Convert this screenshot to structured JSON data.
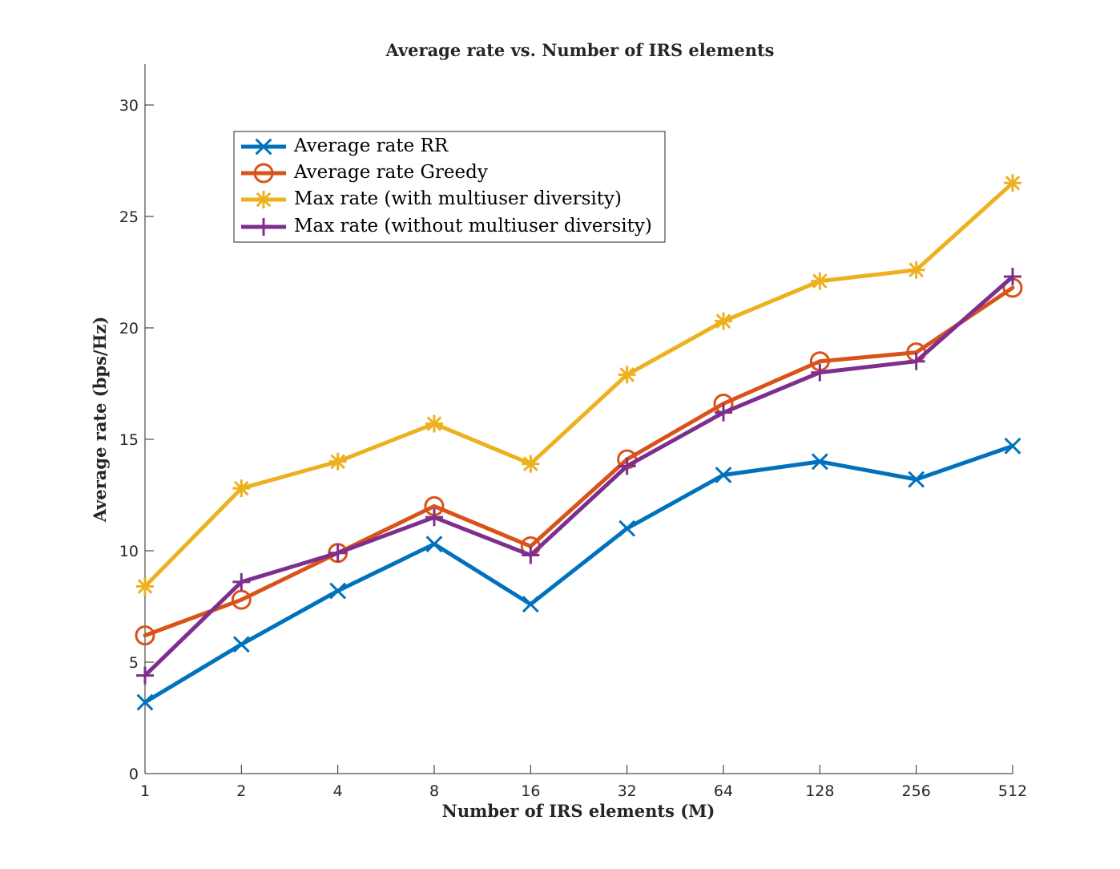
{
  "chart_data": {
    "type": "line",
    "title": "Average rate vs. Number of IRS elements",
    "xlabel": "Number of IRS elements (M)",
    "ylabel": "Average rate (bps/Hz)",
    "x_scale": "log2",
    "x": [
      1,
      2,
      4,
      8,
      16,
      32,
      64,
      128,
      256,
      512
    ],
    "x_tick_labels": [
      "1",
      "2",
      "4",
      "8",
      "16",
      "32",
      "64",
      "128",
      "256",
      "512"
    ],
    "ylim": [
      0,
      32
    ],
    "y_ticks": [
      0,
      5,
      10,
      15,
      20,
      25,
      30
    ],
    "y_tick_labels": [
      "0",
      "5",
      "10",
      "15",
      "20",
      "25",
      "30"
    ],
    "grid": false,
    "legend_placement": "top-left",
    "series": [
      {
        "name": "Average rate RR",
        "color": "#0072BD",
        "marker": "x",
        "values": [
          3.2,
          5.8,
          8.2,
          10.3,
          7.6,
          11.0,
          13.4,
          14.0,
          13.2,
          14.7
        ]
      },
      {
        "name": "Average rate Greedy",
        "color": "#D95319",
        "marker": "o",
        "values": [
          6.2,
          7.8,
          9.9,
          12.0,
          10.2,
          14.1,
          16.6,
          18.5,
          18.9,
          21.8
        ]
      },
      {
        "name": "Max rate (with multiuser diversity)",
        "color": "#EDB120",
        "marker": "*",
        "values": [
          8.4,
          12.8,
          14.0,
          15.7,
          13.9,
          17.9,
          20.3,
          22.1,
          22.6,
          26.5
        ]
      },
      {
        "name": "Max rate (without multiuser diversity)",
        "color": "#7E2F8E",
        "marker": "+",
        "values": [
          4.4,
          8.6,
          9.9,
          11.5,
          9.8,
          13.8,
          16.2,
          18.0,
          18.5,
          22.3
        ]
      }
    ]
  }
}
